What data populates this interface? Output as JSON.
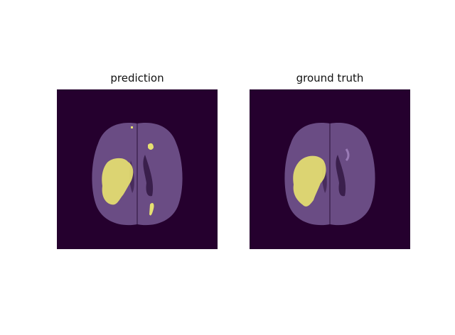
{
  "figure": {
    "panels": [
      {
        "title": "prediction",
        "overlay": "predicted tumor mask over axial brain MRI"
      },
      {
        "title": "ground truth",
        "overlay": "ground truth tumor mask over axial brain MRI"
      }
    ],
    "colors": {
      "background": "#25002e",
      "brain": "#6a4c84",
      "brain_dark": "#4a2e5e",
      "mask": "#e6e071",
      "ventricle": "#3a1f4c"
    }
  }
}
